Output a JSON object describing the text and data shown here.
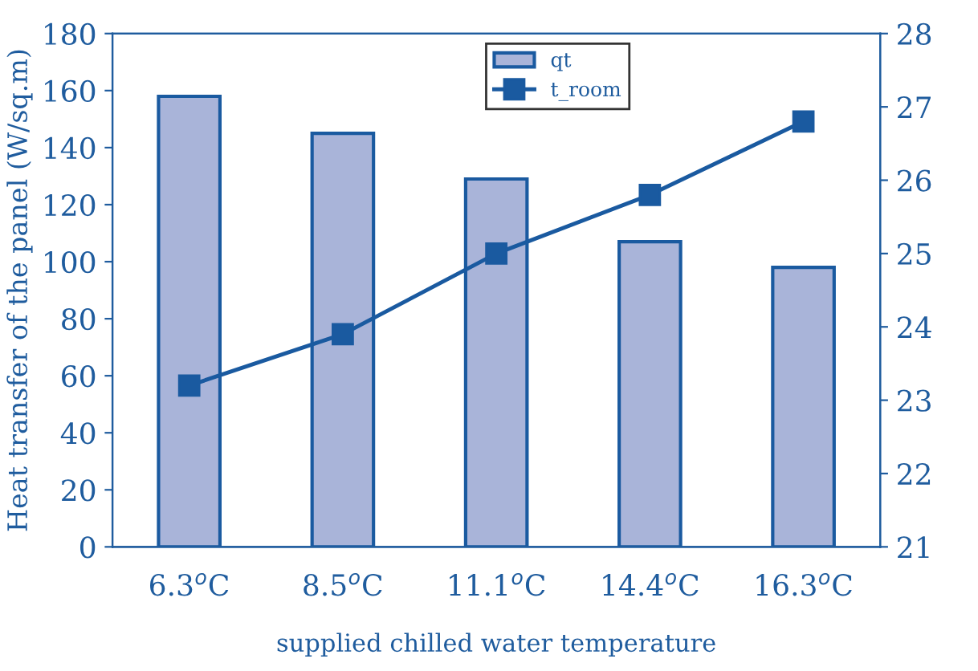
{
  "chart_data": {
    "type": "bar",
    "categories": [
      "6.3$^{o}$C",
      "8.5$^{o}$C",
      "11.1$^{o}$C",
      "14.4$^{o}$C",
      "16.3$^{o}$C"
    ],
    "xlabel": "supplied chilled water temperature",
    "ylabel": "Heat transfer of the panel (W/sq.m)",
    "series": [
      {
        "name": "qt",
        "color": "#a9b4d9",
        "values": [
          158,
          145,
          129,
          107,
          98
        ]
      },
      {
        "name": "t_room",
        "type": "line",
        "axis": "y2",
        "color": "#1a5aa0",
        "values": [
          23.2,
          23.9,
          25.0,
          25.8,
          26.8
        ]
      }
    ],
    "ylim": [
      0,
      180
    ],
    "yticks": [
      0,
      20,
      40,
      60,
      80,
      100,
      120,
      140,
      160,
      180
    ],
    "y2lim": [
      21,
      28
    ],
    "y2ticks": [
      21,
      22,
      23,
      24,
      25,
      26,
      27,
      28
    ],
    "marker": "square",
    "line_style": "solid",
    "grid": false,
    "legend": "top"
  }
}
